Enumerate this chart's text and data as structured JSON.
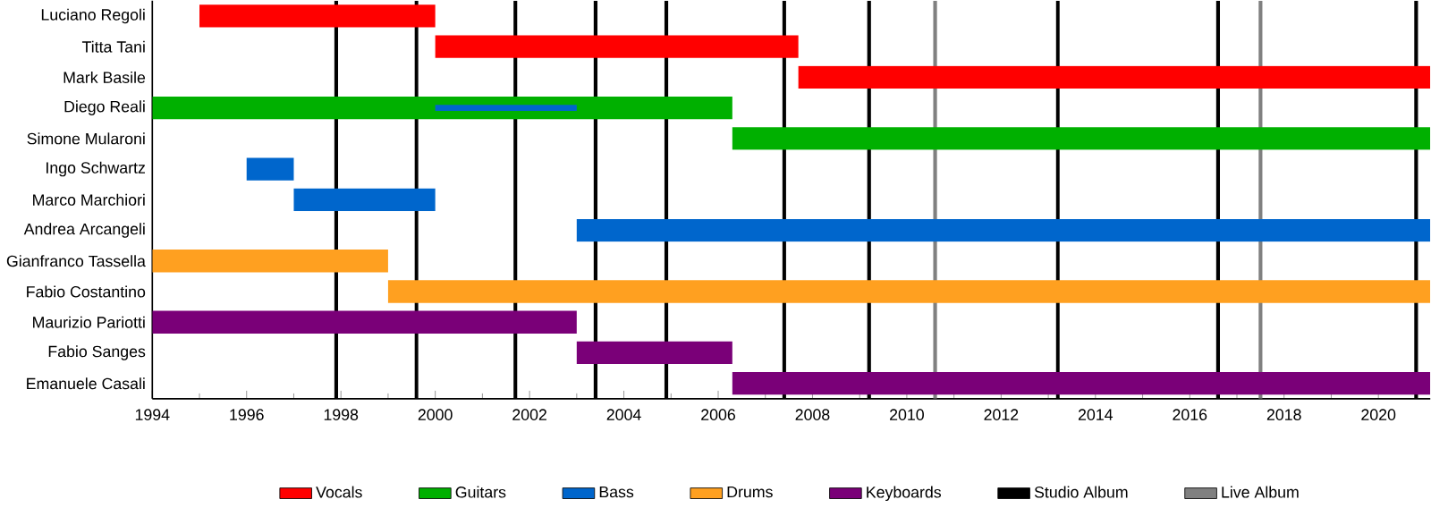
{
  "chart_data": {
    "type": "bar",
    "orientation": "horizontal",
    "categories": [
      "Luciano Regoli",
      "Titta Tani",
      "Mark Basile",
      "Diego Reali",
      "Simone Mularoni",
      "Ingo Schwartz",
      "Marco Marchiori",
      "Andrea Arcangeli",
      "Gianfranco Tassella",
      "Fabio Costantino",
      "Maurizio Pariotti",
      "Fabio Sanges",
      "Emanuele Casali"
    ],
    "series": [
      {
        "name": "Vocals",
        "color": "#ff0000",
        "base": [
          1995,
          2000,
          2007.7,
          null,
          null,
          null,
          null,
          null,
          null,
          null,
          null,
          null,
          null
        ],
        "values": [
          5,
          7.7,
          13.4,
          null,
          null,
          null,
          null,
          null,
          null,
          null,
          null,
          null,
          null
        ]
      },
      {
        "name": "Guitars",
        "color": "#00b000",
        "base": [
          null,
          null,
          null,
          1994,
          2006.3,
          null,
          null,
          null,
          null,
          null,
          null,
          null,
          null
        ],
        "values": [
          null,
          null,
          null,
          12.3,
          14.8,
          null,
          null,
          null,
          null,
          null,
          null,
          null,
          null
        ]
      },
      {
        "name": "Bass",
        "color": "#0066cc",
        "base": [
          null,
          null,
          null,
          2000,
          null,
          1996,
          1997,
          2003,
          null,
          null,
          null,
          null,
          null
        ],
        "values": [
          null,
          null,
          null,
          3,
          null,
          1,
          3,
          18.1,
          null,
          null,
          null,
          null,
          null
        ]
      },
      {
        "name": "Drums",
        "color": "#ffa020",
        "base": [
          null,
          null,
          null,
          null,
          null,
          null,
          null,
          null,
          1994,
          1999,
          null,
          null,
          null
        ],
        "values": [
          null,
          null,
          null,
          null,
          null,
          null,
          null,
          null,
          5,
          22.1,
          null,
          null,
          null
        ]
      },
      {
        "name": "Keyboards",
        "color": "#7a0078",
        "base": [
          null,
          null,
          null,
          null,
          null,
          null,
          null,
          null,
          null,
          null,
          1994,
          2003,
          2006.3
        ],
        "values": [
          null,
          null,
          null,
          null,
          null,
          null,
          null,
          null,
          null,
          null,
          9,
          3.3,
          14.8
        ]
      }
    ],
    "ref_lines": [
      {
        "axis": "x",
        "value": 1997.9,
        "color": "#000000",
        "label": "Studio Album"
      },
      {
        "axis": "x",
        "value": 1999.6,
        "color": "#000000"
      },
      {
        "axis": "x",
        "value": 2001.7,
        "color": "#000000"
      },
      {
        "axis": "x",
        "value": 2003.4,
        "color": "#000000"
      },
      {
        "axis": "x",
        "value": 2004.9,
        "color": "#000000"
      },
      {
        "axis": "x",
        "value": 2007.4,
        "color": "#000000"
      },
      {
        "axis": "x",
        "value": 2009.2,
        "color": "#000000"
      },
      {
        "axis": "x",
        "value": 2013.2,
        "color": "#000000"
      },
      {
        "axis": "x",
        "value": 2016.6,
        "color": "#000000"
      },
      {
        "axis": "x",
        "value": 2020.8,
        "color": "#000000"
      },
      {
        "axis": "x",
        "value": 2010.6,
        "color": "#808080",
        "label": "Live Album"
      },
      {
        "axis": "x",
        "value": 2017.5,
        "color": "#808080"
      }
    ],
    "xlim": [
      1994,
      2021.1
    ],
    "xticks": [
      1994,
      1996,
      1998,
      2000,
      2002,
      2004,
      2006,
      2008,
      2010,
      2012,
      2014,
      2016,
      2018,
      2020
    ],
    "grid": false,
    "legend": "bottom"
  }
}
